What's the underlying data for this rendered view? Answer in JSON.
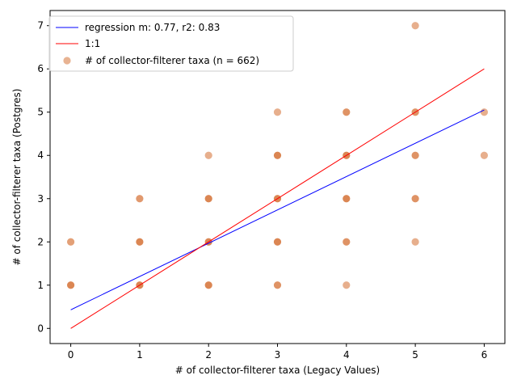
{
  "chart_data": {
    "type": "scatter",
    "title": "",
    "xlabel": "# of collector-filterer taxa (Legacy Values)",
    "ylabel": "# of collector-filterer taxa (Postgres)",
    "xlim": [
      -0.3,
      6.3
    ],
    "ylim": [
      -0.35,
      7.35
    ],
    "xticks": [
      0,
      1,
      2,
      3,
      4,
      5,
      6
    ],
    "yticks": [
      0,
      1,
      2,
      3,
      4,
      5,
      6,
      7
    ],
    "grid": false,
    "legend_position": "top-left",
    "series": [
      {
        "name": "regression m: 0.77, r2: 0.83",
        "kind": "line",
        "color": "#0000ff",
        "x": [
          0,
          6
        ],
        "y": [
          0.43,
          5.05
        ]
      },
      {
        "name": "1:1",
        "kind": "line",
        "color": "#ff0000",
        "x": [
          0,
          6
        ],
        "y": [
          0,
          6
        ]
      },
      {
        "name": "# of collector-filterer taxa (n = 662)",
        "kind": "scatter",
        "color": "#d9804a",
        "points": [
          {
            "x": 0,
            "y": 1,
            "density": 1.0
          },
          {
            "x": 0,
            "y": 2,
            "density": 0.6
          },
          {
            "x": 1,
            "y": 1,
            "density": 1.0
          },
          {
            "x": 1,
            "y": 2,
            "density": 1.0
          },
          {
            "x": 1,
            "y": 3,
            "density": 0.7
          },
          {
            "x": 2,
            "y": 1,
            "density": 1.0
          },
          {
            "x": 2,
            "y": 2,
            "density": 1.0
          },
          {
            "x": 2,
            "y": 3,
            "density": 1.0
          },
          {
            "x": 2,
            "y": 4,
            "density": 0.35
          },
          {
            "x": 3,
            "y": 1,
            "density": 0.8
          },
          {
            "x": 3,
            "y": 2,
            "density": 1.0
          },
          {
            "x": 3,
            "y": 3,
            "density": 1.0
          },
          {
            "x": 3,
            "y": 4,
            "density": 1.0
          },
          {
            "x": 3,
            "y": 5,
            "density": 0.35
          },
          {
            "x": 4,
            "y": 1,
            "density": 0.35
          },
          {
            "x": 4,
            "y": 2,
            "density": 0.8
          },
          {
            "x": 4,
            "y": 3,
            "density": 1.0
          },
          {
            "x": 4,
            "y": 4,
            "density": 1.0
          },
          {
            "x": 4,
            "y": 5,
            "density": 0.8
          },
          {
            "x": 5,
            "y": 2,
            "density": 0.35
          },
          {
            "x": 5,
            "y": 3,
            "density": 0.8
          },
          {
            "x": 5,
            "y": 4,
            "density": 0.8
          },
          {
            "x": 5,
            "y": 5,
            "density": 0.8
          },
          {
            "x": 5,
            "y": 7,
            "density": 0.35
          },
          {
            "x": 6,
            "y": 4,
            "density": 0.35
          },
          {
            "x": 6,
            "y": 5,
            "density": 0.35
          }
        ]
      }
    ]
  }
}
